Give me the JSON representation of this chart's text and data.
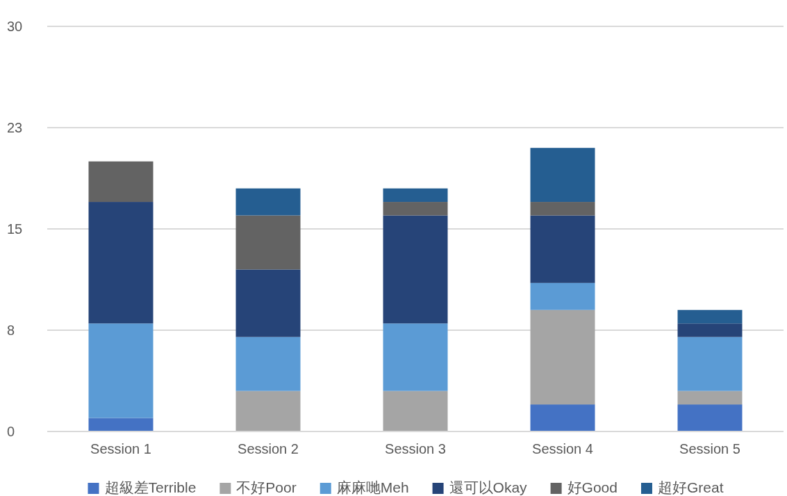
{
  "chart_data": {
    "type": "bar",
    "stacked": true,
    "categories": [
      "Session 1",
      "Session 2",
      "Session 3",
      "Session 4",
      "Session 5"
    ],
    "series": [
      {
        "name": "超級差Terrible",
        "color": "#4472c4",
        "values": [
          1,
          null,
          null,
          2,
          2
        ]
      },
      {
        "name": "不好Poor",
        "color": "#a5a5a5",
        "values": [
          null,
          3,
          3,
          7,
          1
        ]
      },
      {
        "name": "麻麻哋Meh",
        "color": "#5b9bd5",
        "values": [
          7,
          4,
          5,
          2,
          4
        ]
      },
      {
        "name": "還可以Okay",
        "color": "#264478",
        "values": [
          9,
          5,
          8,
          5,
          1
        ]
      },
      {
        "name": "好Good",
        "color": "#636363",
        "values": [
          3,
          4,
          1,
          1,
          null
        ]
      },
      {
        "name": "超好Great",
        "color": "#255e91",
        "values": [
          null,
          2,
          1,
          4,
          1
        ]
      }
    ],
    "ylim": [
      0,
      30
    ],
    "yticks": [
      0,
      {
        "value": 7.5,
        "label": "8"
      },
      15,
      {
        "value": 22.5,
        "label": "23"
      },
      30
    ],
    "grid": "y",
    "legend": "bottom"
  }
}
